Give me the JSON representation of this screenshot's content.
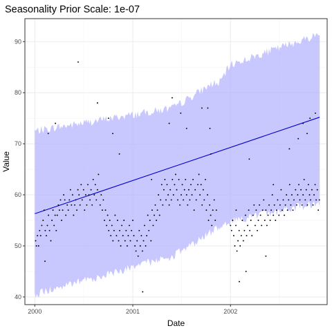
{
  "chart_data": {
    "type": "scatter",
    "title": "Seasonality Prior Scale: 1e-07",
    "xlabel": "Date",
    "ylabel": "Value",
    "x_ticks": [
      "2000",
      "2001",
      "2002"
    ],
    "y_ticks": [
      40,
      50,
      60,
      70,
      80,
      90
    ],
    "xlim": [
      "1999-11-25",
      "2002-12-28"
    ],
    "ylim": [
      38.5,
      94.5
    ],
    "grid": true,
    "colors": {
      "band": "#b3b3ff",
      "trend": "#0000cc",
      "points": "#000000"
    },
    "series": [
      {
        "type": "line",
        "x": [
          "2000-01-01",
          "2002-11-30"
        ],
        "y": [
          56.3,
          75.2
        ]
      },
      {
        "type": "band",
        "x": [
          "2000-01-01",
          "2001-06-01",
          "2001-11-01",
          "2001-11-15",
          "2002-01-01",
          "2002-11-30"
        ],
        "lower": [
          40.5,
          48.0,
          53.0,
          53.8,
          54.8,
          58.5
        ],
        "upper": [
          72.5,
          77.0,
          82.0,
          81.5,
          85.5,
          91.5
        ]
      },
      {
        "type": "scatter",
        "x": [
          "2000-01-04",
          "2000-01-07",
          "2000-01-11",
          "2000-01-15",
          "2000-01-19",
          "2000-01-23",
          "2000-01-27",
          "2000-02-01",
          "2000-02-05",
          "2000-02-09",
          "2000-02-13",
          "2000-02-17",
          "2000-02-21",
          "2000-02-25",
          "2000-03-01",
          "2000-03-05",
          "2000-03-09",
          "2000-03-13",
          "2000-03-17",
          "2000-03-21",
          "2000-03-25",
          "2000-03-29",
          "2000-04-02",
          "2000-04-06",
          "2000-04-10",
          "2000-04-14",
          "2000-04-18",
          "2000-04-22",
          "2000-04-26",
          "2000-05-01",
          "2000-05-05",
          "2000-05-09",
          "2000-05-13",
          "2000-05-17",
          "2000-05-21",
          "2000-05-25",
          "2000-05-29",
          "2000-06-02",
          "2000-06-06",
          "2000-06-10",
          "2000-06-14",
          "2000-06-18",
          "2000-06-22",
          "2000-06-26",
          "2000-07-01",
          "2000-07-05",
          "2000-07-09",
          "2000-07-13",
          "2000-07-17",
          "2000-07-21",
          "2000-07-25",
          "2000-07-29",
          "2000-08-02",
          "2000-08-06",
          "2000-08-10",
          "2000-08-14",
          "2000-08-18",
          "2000-08-22",
          "2000-08-26",
          "2000-09-01",
          "2000-09-05",
          "2000-09-09",
          "2000-09-13",
          "2000-09-17",
          "2000-09-21",
          "2000-09-25",
          "2000-09-29",
          "2000-10-03",
          "2000-10-07",
          "2000-10-11",
          "2000-10-15",
          "2000-10-19",
          "2000-10-23",
          "2000-10-27",
          "2000-11-01",
          "2000-11-05",
          "2000-11-09",
          "2000-11-13",
          "2000-11-17",
          "2000-11-21",
          "2000-11-25",
          "2000-11-29",
          "2000-12-03",
          "2000-12-07",
          "2000-12-11",
          "2000-12-15",
          "2000-12-19",
          "2000-12-23",
          "2000-12-27",
          "2001-01-01",
          "2001-01-05",
          "2001-01-09",
          "2001-01-13",
          "2001-01-17",
          "2001-01-21",
          "2001-01-25",
          "2001-01-29",
          "2001-02-02",
          "2001-02-06",
          "2001-02-10",
          "2001-02-14",
          "2001-02-18",
          "2001-02-22",
          "2001-02-26",
          "2001-03-02",
          "2001-03-06",
          "2001-03-10",
          "2001-03-14",
          "2001-03-18",
          "2001-03-22",
          "2001-03-26",
          "2001-03-30",
          "2001-04-03",
          "2001-04-07",
          "2001-04-11",
          "2001-04-15",
          "2001-04-19",
          "2001-04-23",
          "2001-04-27",
          "2001-05-01",
          "2001-05-05",
          "2001-05-09",
          "2001-05-13",
          "2001-05-17",
          "2001-05-21",
          "2001-05-25",
          "2001-05-29",
          "2001-06-02",
          "2001-06-06",
          "2001-06-10",
          "2001-06-14",
          "2001-06-18",
          "2001-06-22",
          "2001-06-26",
          "2001-07-01",
          "2001-07-05",
          "2001-07-09",
          "2001-07-13",
          "2001-07-17",
          "2001-07-21",
          "2001-07-25",
          "2001-07-29",
          "2001-08-02",
          "2001-08-06",
          "2001-08-10",
          "2001-08-14",
          "2001-08-18",
          "2001-08-22",
          "2001-08-26",
          "2001-09-01",
          "2001-09-05",
          "2001-09-09",
          "2001-09-13",
          "2001-09-17",
          "2001-09-21",
          "2001-09-25",
          "2001-09-29",
          "2001-10-03",
          "2001-10-07",
          "2001-10-11",
          "2001-10-15",
          "2001-10-19",
          "2001-10-23",
          "2001-10-27",
          "2001-11-01",
          "2001-11-05",
          "2001-11-09",
          "2002-01-01",
          "2002-01-05",
          "2002-01-09",
          "2002-01-13",
          "2002-01-17",
          "2002-01-21",
          "2002-01-25",
          "2002-01-29",
          "2002-02-02",
          "2002-02-06",
          "2002-02-10",
          "2002-02-14",
          "2002-02-18",
          "2002-02-22",
          "2002-02-26",
          "2002-03-02",
          "2002-03-06",
          "2002-03-10",
          "2002-03-14",
          "2002-03-18",
          "2002-03-22",
          "2002-03-26",
          "2002-03-30",
          "2002-04-03",
          "2002-04-07",
          "2002-04-11",
          "2002-04-15",
          "2002-04-19",
          "2002-04-23",
          "2002-04-27",
          "2002-05-01",
          "2002-05-05",
          "2002-05-09",
          "2002-05-13",
          "2002-05-17",
          "2002-05-21",
          "2002-05-25",
          "2002-05-29",
          "2002-06-02",
          "2002-06-06",
          "2002-06-10",
          "2002-06-14",
          "2002-06-18",
          "2002-06-22",
          "2002-06-26",
          "2002-07-01",
          "2002-07-05",
          "2002-07-09",
          "2002-07-13",
          "2002-07-17",
          "2002-07-21",
          "2002-07-25",
          "2002-07-29",
          "2002-08-02",
          "2002-08-06",
          "2002-08-10",
          "2002-08-14",
          "2002-08-18",
          "2002-08-22",
          "2002-08-26",
          "2002-09-01",
          "2002-09-05",
          "2002-09-09",
          "2002-09-13",
          "2002-09-17",
          "2002-09-21",
          "2002-09-25",
          "2002-09-29",
          "2002-10-03",
          "2002-10-07",
          "2002-10-11",
          "2002-10-15",
          "2002-10-19",
          "2002-10-23",
          "2002-10-27",
          "2002-11-01",
          "2002-11-05",
          "2002-11-09",
          "2002-11-13",
          "2002-11-17",
          "2002-11-21",
          "2002-11-25",
          "2002-11-29",
          "2000-02-08",
          "2000-02-20",
          "2000-03-18",
          "2000-06-11",
          "2000-08-22",
          "2000-10-02",
          "2000-10-18",
          "2000-11-12",
          "2001-02-07",
          "2001-03-12",
          "2001-05-17",
          "2001-05-28",
          "2001-06-29",
          "2001-07-21",
          "2001-09-16",
          "2001-10-08",
          "2001-10-16",
          "2001-10-20",
          "2002-01-22",
          "2002-02-03",
          "2002-02-28",
          "2002-03-12",
          "2002-05-13",
          "2002-06-10",
          "2002-08-09",
          "2002-09-11",
          "2002-09-29",
          "2002-10-14",
          "2002-10-25",
          "2002-11-14"
        ],
        "y": [
          51,
          50,
          52,
          50,
          53,
          52,
          54,
          55,
          57,
          53,
          52,
          54,
          56,
          53,
          51,
          55,
          57,
          54,
          56,
          53,
          56,
          58,
          57,
          59,
          55,
          57,
          60,
          59,
          56,
          58,
          57,
          59,
          61,
          58,
          60,
          56,
          58,
          59,
          57,
          61,
          60,
          58,
          62,
          59,
          61,
          57,
          60,
          58,
          62,
          60,
          59,
          61,
          58,
          63,
          60,
          62,
          59,
          61,
          64,
          58,
          60,
          57,
          59,
          55,
          57,
          54,
          56,
          53,
          55,
          52,
          54,
          51,
          53,
          56,
          52,
          55,
          51,
          53,
          50,
          54,
          52,
          55,
          51,
          53,
          50,
          52,
          54,
          51,
          53,
          55,
          52,
          50,
          49,
          51,
          48,
          53,
          50,
          52,
          49,
          51,
          54,
          50,
          52,
          56,
          53,
          55,
          51,
          57,
          54,
          56,
          58,
          55,
          57,
          60,
          56,
          59,
          62,
          58,
          61,
          63,
          59,
          62,
          60,
          58,
          61,
          59,
          63,
          60,
          62,
          64,
          61,
          59,
          63,
          58,
          60,
          62,
          59,
          61,
          63,
          60,
          58,
          61,
          59,
          62,
          60,
          63,
          57,
          61,
          59,
          62,
          64,
          60,
          62,
          58,
          61,
          59,
          63,
          57,
          60,
          55,
          58,
          56,
          54,
          57,
          59,
          55,
          57,
          54,
          53,
          55,
          52,
          50,
          54,
          49,
          51,
          53,
          50,
          52,
          55,
          51,
          53,
          56,
          52,
          54,
          57,
          53,
          55,
          52,
          56,
          58,
          54,
          57,
          53,
          55,
          58,
          56,
          54,
          57,
          59,
          55,
          57,
          54,
          56,
          58,
          55,
          57,
          60,
          56,
          58,
          55,
          57,
          59,
          56,
          58,
          61,
          57,
          59,
          56,
          58,
          60,
          57,
          59,
          62,
          58,
          60,
          57,
          59,
          61,
          58,
          60,
          62,
          59,
          61,
          58,
          60,
          63,
          59,
          61,
          58,
          62,
          60,
          59,
          61,
          58,
          60,
          62,
          59,
          61,
          57,
          59,
          47,
          72,
          74,
          86,
          78,
          75,
          72,
          68,
          41,
          63,
          74,
          79,
          76,
          73,
          77,
          77,
          73,
          68,
          57,
          43,
          45,
          67,
          48,
          62,
          69,
          71,
          74,
          72,
          75,
          76
        ]
      }
    ]
  }
}
